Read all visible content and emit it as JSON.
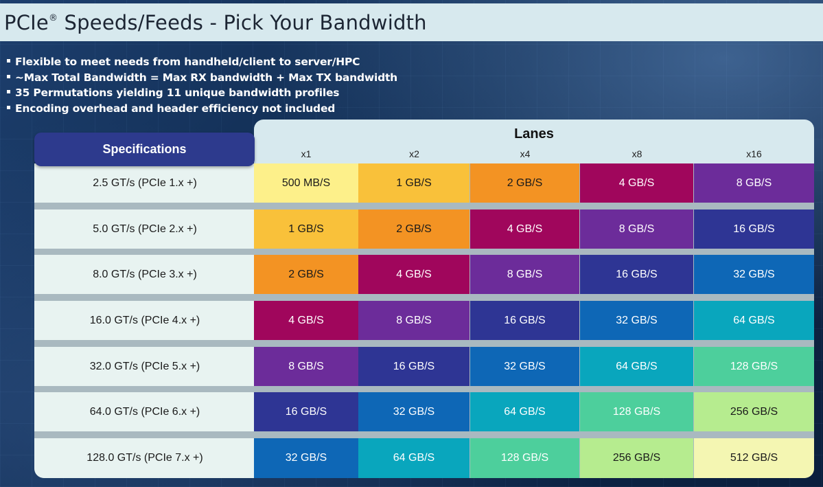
{
  "title": {
    "main": "PCIe",
    "reg": "®",
    "rest": " Speeds/Feeds - Pick Your Bandwidth"
  },
  "bullets": [
    "Flexible to meet needs from handheld/client to server/HPC",
    "~Max Total Bandwidth = Max RX bandwidth + Max TX bandwidth",
    "35 Permutations yielding 11 unique bandwidth profiles",
    "Encoding overhead and header efficiency not included"
  ],
  "table": {
    "spec_header": "Specifications",
    "lanes_header": "Lanes",
    "lanes": [
      "x1",
      "x2",
      "x4",
      "x8",
      "x16"
    ],
    "rows": [
      {
        "spec": "2.5 GT/s (PCIe 1.x +)",
        "values": [
          "500 MB/S",
          "1 GB/S",
          "2 GB/S",
          "4 GB/S",
          "8 GB/S"
        ]
      },
      {
        "spec": "5.0 GT/s (PCIe 2.x +)",
        "values": [
          "1 GB/S",
          "2 GB/S",
          "4 GB/S",
          "8 GB/S",
          "16 GB/S"
        ]
      },
      {
        "spec": "8.0 GT/s (PCIe 3.x +)",
        "values": [
          "2 GB/S",
          "4 GB/S",
          "8 GB/S",
          "16 GB/S",
          "32 GB/S"
        ]
      },
      {
        "spec": "16.0 GT/s (PCIe 4.x +)",
        "values": [
          "4 GB/S",
          "8 GB/S",
          "16 GB/S",
          "32 GB/S",
          "64 GB/S"
        ]
      },
      {
        "spec": "32.0 GT/s (PCIe 5.x +)",
        "values": [
          "8 GB/S",
          "16 GB/S",
          "32 GB/S",
          "64 GB/S",
          "128 GB/S"
        ]
      },
      {
        "spec": "64.0 GT/s (PCIe 6.x +)",
        "values": [
          "16 GB/S",
          "32 GB/S",
          "64 GB/S",
          "128 GB/S",
          "256 GB/S"
        ]
      },
      {
        "spec": "128.0 GT/s (PCIe 7.x +)",
        "values": [
          "32 GB/S",
          "64 GB/S",
          "128 GB/S",
          "256 GB/S",
          "512 GB/S"
        ]
      }
    ]
  },
  "colors": {
    "500 MB/S": {
      "bg": "#fdf08a",
      "fg": "#1a1a1a"
    },
    "1 GB/S": {
      "bg": "#f9c13a",
      "fg": "#1a1a1a"
    },
    "2 GB/S": {
      "bg": "#f39323",
      "fg": "#1a1a1a"
    },
    "4 GB/S": {
      "bg": "#a0065c",
      "fg": "#ffffff"
    },
    "8 GB/S": {
      "bg": "#6c2c9a",
      "fg": "#ffffff"
    },
    "16 GB/S": {
      "bg": "#2e3594",
      "fg": "#ffffff"
    },
    "32 GB/S": {
      "bg": "#0e67b6",
      "fg": "#ffffff"
    },
    "64 GB/S": {
      "bg": "#09a6bd",
      "fg": "#ffffff"
    },
    "128 GB/S": {
      "bg": "#4dcf9c",
      "fg": "#ffffff"
    },
    "256 GB/S": {
      "bg": "#b6ec8f",
      "fg": "#1a1a1a"
    },
    "512 GB/S": {
      "bg": "#f4f6b2",
      "fg": "#1a1a1a"
    }
  }
}
